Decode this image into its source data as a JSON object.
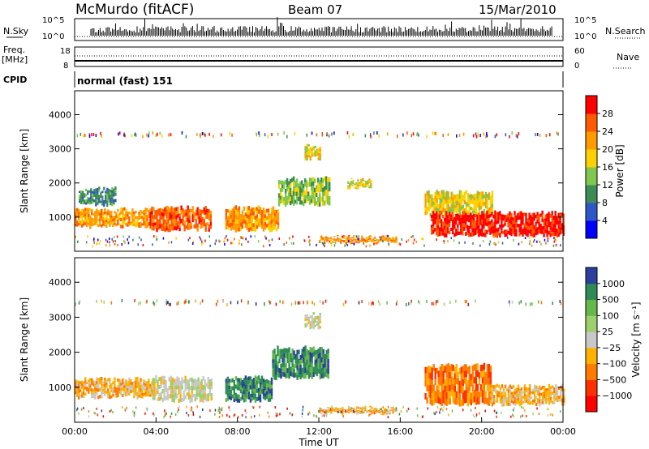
{
  "header": {
    "station": "McMurdo (fitACF)",
    "beam": "Beam 07",
    "date": "15/Mar/2010"
  },
  "top_panels": {
    "nsky_label": "N.Sky",
    "nsearch_label": "N.Search",
    "noise_tick_top": "10^5",
    "noise_tick_bottom": "10^0",
    "freq_label_1": "Freq.",
    "freq_label_2": "[MHz]",
    "freq_ticks": [
      "18",
      "8"
    ],
    "nave_label": "Nave",
    "nave_ticks": [
      "60",
      "0"
    ],
    "cpid_label": "CPID",
    "cpid_text": "normal (fast) 151"
  },
  "colors": {
    "power": [
      "#0000ff",
      "#2f56c9",
      "#3d8c55",
      "#7ec850",
      "#ffd000",
      "#ff9a00",
      "#ff5a00",
      "#ff0000"
    ],
    "velocity": [
      "#2a3f9e",
      "#2e8b57",
      "#66b84a",
      "#9cd06a",
      "#c8c8c8",
      "#ffb000",
      "#ff7a00",
      "#ff3000",
      "#ff0000"
    ]
  },
  "chart_data": [
    {
      "type": "heatmap",
      "name": "power",
      "xlabel": "",
      "ylabel": "Slant Range [km]",
      "xlim": [
        0,
        24
      ],
      "ylim": [
        0,
        4700
      ],
      "yticks": [
        "1000",
        "2000",
        "3000",
        "4000"
      ],
      "colorbar_label": "Power [dB]",
      "colorbar_ticks": [
        "4",
        "8",
        "12",
        "16",
        "20",
        "24",
        "28"
      ],
      "echo_regions": [
        {
          "t0": 0.0,
          "t1": 3.6,
          "r_lo": 650,
          "r_hi": 1300,
          "level": 5
        },
        {
          "t0": 0.2,
          "t1": 2.0,
          "r_lo": 1300,
          "r_hi": 1900,
          "level": 2
        },
        {
          "t0": 3.6,
          "t1": 6.7,
          "r_lo": 550,
          "r_hi": 1350,
          "level": 6
        },
        {
          "t0": 7.4,
          "t1": 10.0,
          "r_lo": 550,
          "r_hi": 1350,
          "level": 5
        },
        {
          "t0": 10.0,
          "t1": 12.5,
          "r_lo": 1300,
          "r_hi": 2200,
          "level": 3
        },
        {
          "t0": 11.3,
          "t1": 12.1,
          "r_lo": 2650,
          "r_hi": 3150,
          "level": 4
        },
        {
          "t0": 12.0,
          "t1": 15.8,
          "r_lo": 200,
          "r_hi": 480,
          "level": 5
        },
        {
          "t0": 13.4,
          "t1": 14.6,
          "r_lo": 1800,
          "r_hi": 2150,
          "level": 4
        },
        {
          "t0": 17.2,
          "t1": 20.5,
          "r_lo": 1000,
          "r_hi": 1800,
          "level": 4
        },
        {
          "t0": 17.5,
          "t1": 24.0,
          "r_lo": 400,
          "r_hi": 1200,
          "level": 7
        }
      ]
    },
    {
      "type": "heatmap",
      "name": "velocity",
      "xlabel": "Time UT",
      "ylabel": "Slant Range [km]",
      "xlim": [
        0,
        24
      ],
      "ylim": [
        0,
        4700
      ],
      "xticks": [
        "00:00",
        "04:00",
        "08:00",
        "12:00",
        "16:00",
        "20:00",
        "00:00"
      ],
      "yticks": [
        "1000",
        "2000",
        "3000",
        "4000"
      ],
      "colorbar_label": "Velocity [m s⁻¹]",
      "colorbar_ticks": [
        "1000",
        "500",
        "100",
        "25",
        "−25",
        "−100",
        "−500",
        "−1000"
      ],
      "echo_regions": [
        {
          "t0": 0.0,
          "t1": 3.8,
          "r_lo": 650,
          "r_hi": 1300,
          "level": 5
        },
        {
          "t0": 3.8,
          "t1": 6.7,
          "r_lo": 550,
          "r_hi": 1350,
          "level": 4
        },
        {
          "t0": 7.4,
          "t1": 9.7,
          "r_lo": 550,
          "r_hi": 1350,
          "level": 1
        },
        {
          "t0": 9.7,
          "t1": 12.5,
          "r_lo": 1200,
          "r_hi": 2200,
          "level": 1
        },
        {
          "t0": 11.3,
          "t1": 12.1,
          "r_lo": 2650,
          "r_hi": 3150,
          "level": 4
        },
        {
          "t0": 12.0,
          "t1": 15.8,
          "r_lo": 200,
          "r_hi": 480,
          "level": 5
        },
        {
          "t0": 17.2,
          "t1": 20.4,
          "r_lo": 450,
          "r_hi": 1700,
          "level": 6
        },
        {
          "t0": 20.4,
          "t1": 24.0,
          "r_lo": 450,
          "r_hi": 1100,
          "level": 5
        }
      ]
    }
  ]
}
